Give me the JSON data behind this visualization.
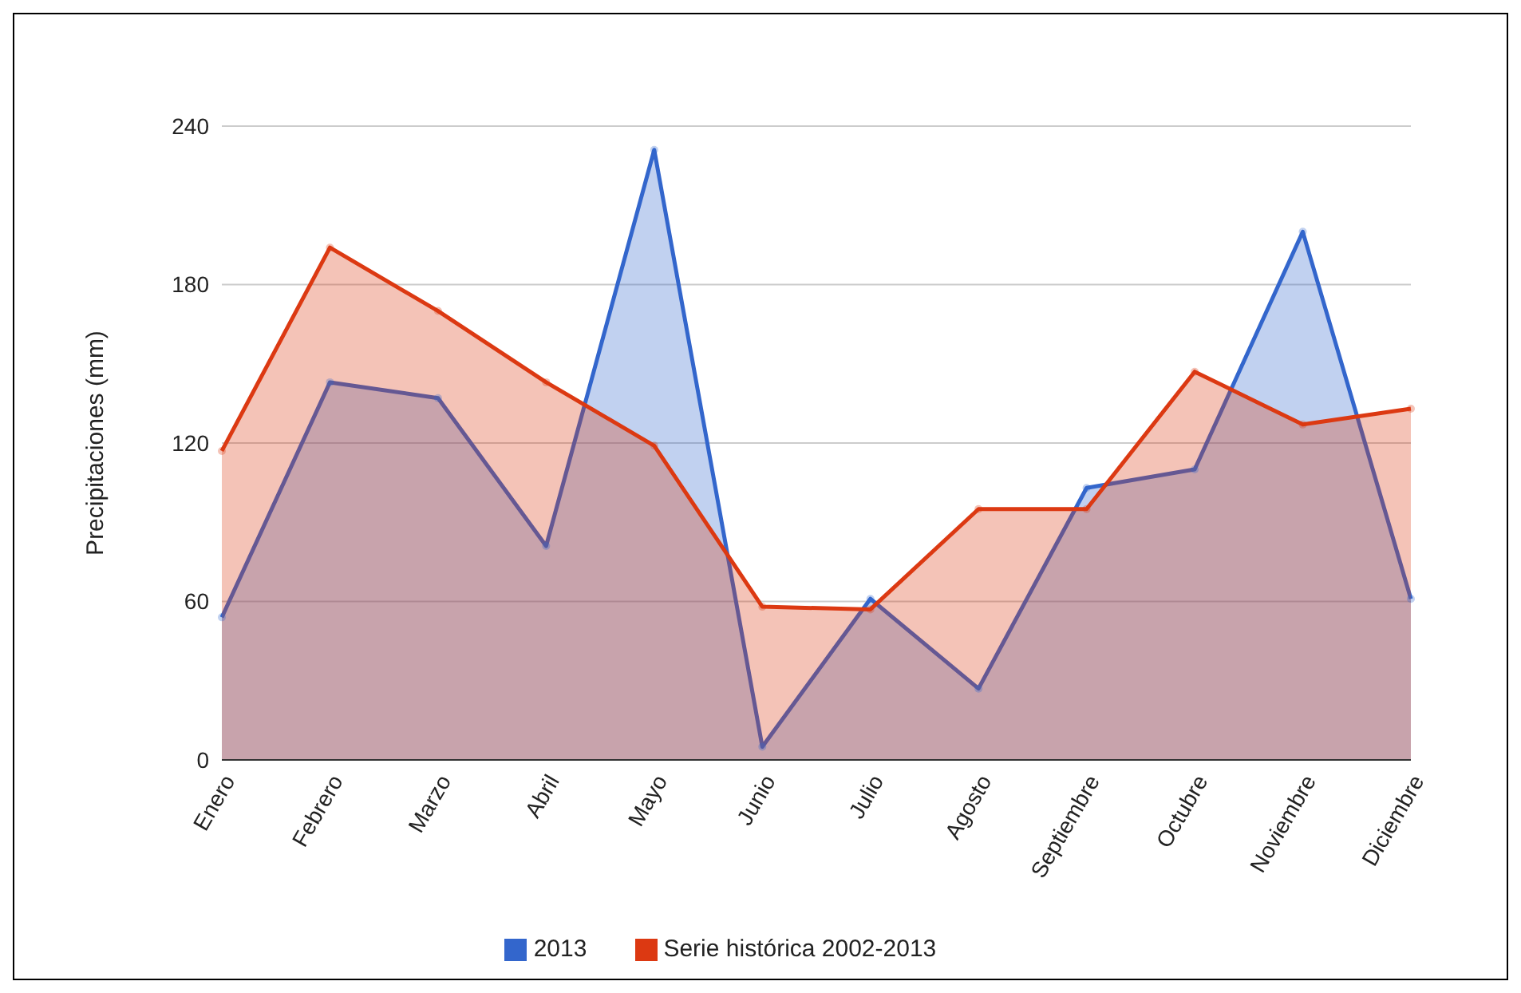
{
  "chart_data": {
    "type": "area",
    "ylabel": "Precipitaciones (mm)",
    "categories": [
      "Enero",
      "Febrero",
      "Marzo",
      "Abril",
      "Mayo",
      "Junio",
      "Julio",
      "Agosto",
      "Septiembre",
      "Octubre",
      "Noviembre",
      "Diciembre"
    ],
    "series": [
      {
        "name": "2013",
        "color": "#3366cc",
        "values": [
          54,
          143,
          137,
          81,
          231,
          5,
          61,
          27,
          103,
          110,
          200,
          61
        ]
      },
      {
        "name": "Serie histórica 2002-2013",
        "color": "#dc3912",
        "values": [
          117,
          194,
          170,
          143,
          119,
          58,
          57,
          95,
          95,
          147,
          127,
          133
        ]
      }
    ],
    "ylim": [
      0,
      240
    ],
    "yticks": [
      0,
      60,
      120,
      180,
      240
    ],
    "grid": "y",
    "legend": "bottom",
    "marker": "circle",
    "line_style": "solid"
  }
}
